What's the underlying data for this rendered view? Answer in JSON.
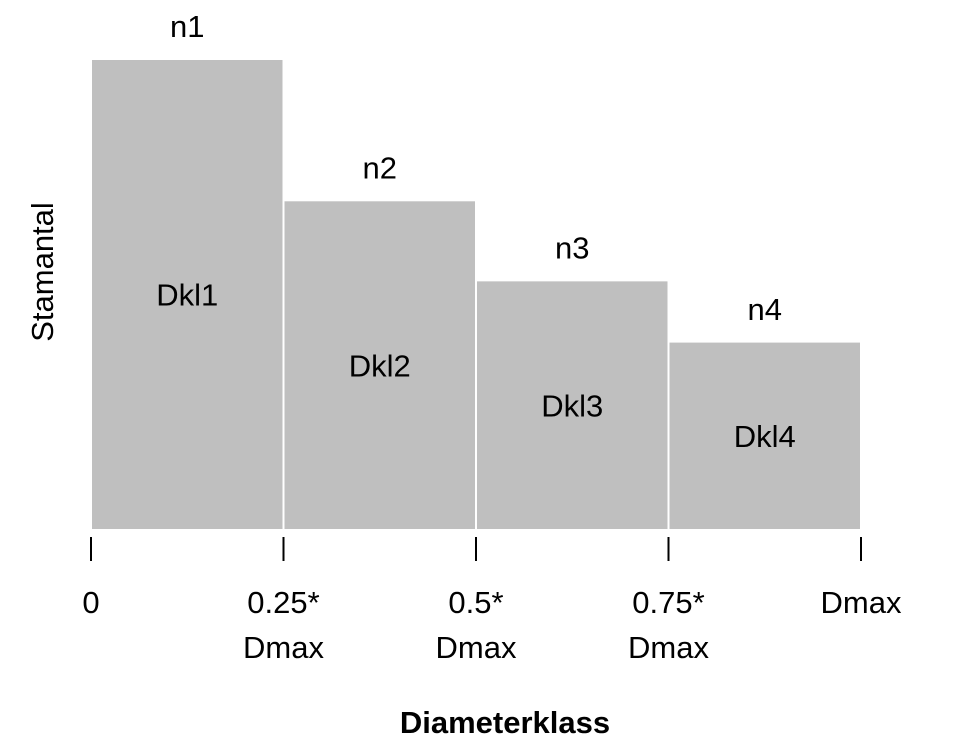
{
  "chart_data": {
    "type": "histogram",
    "x_label": "Diameterklass",
    "y_label": "Stamantal",
    "bins": [
      0,
      0.25,
      0.5,
      0.75,
      1
    ],
    "values": [
      100,
      70,
      53,
      40
    ],
    "categories": [
      "Dkl1",
      "Dkl2",
      "Dkl3",
      "Dkl4"
    ],
    "top_labels": [
      "n1",
      "n2",
      "n3",
      "n4"
    ],
    "color": "#bfbfbf",
    "xlim": [
      0,
      1
    ],
    "ylim": [
      0,
      100
    ],
    "xticks": [
      {
        "value": 0,
        "label": "0"
      },
      {
        "value": 0.25,
        "label": "0.25*\nDmax"
      },
      {
        "value": 0.5,
        "label": "0.5*\nDmax"
      },
      {
        "value": 0.75,
        "label": "0.75*\nDmax"
      },
      {
        "value": 1,
        "label": "Dmax"
      }
    ]
  }
}
